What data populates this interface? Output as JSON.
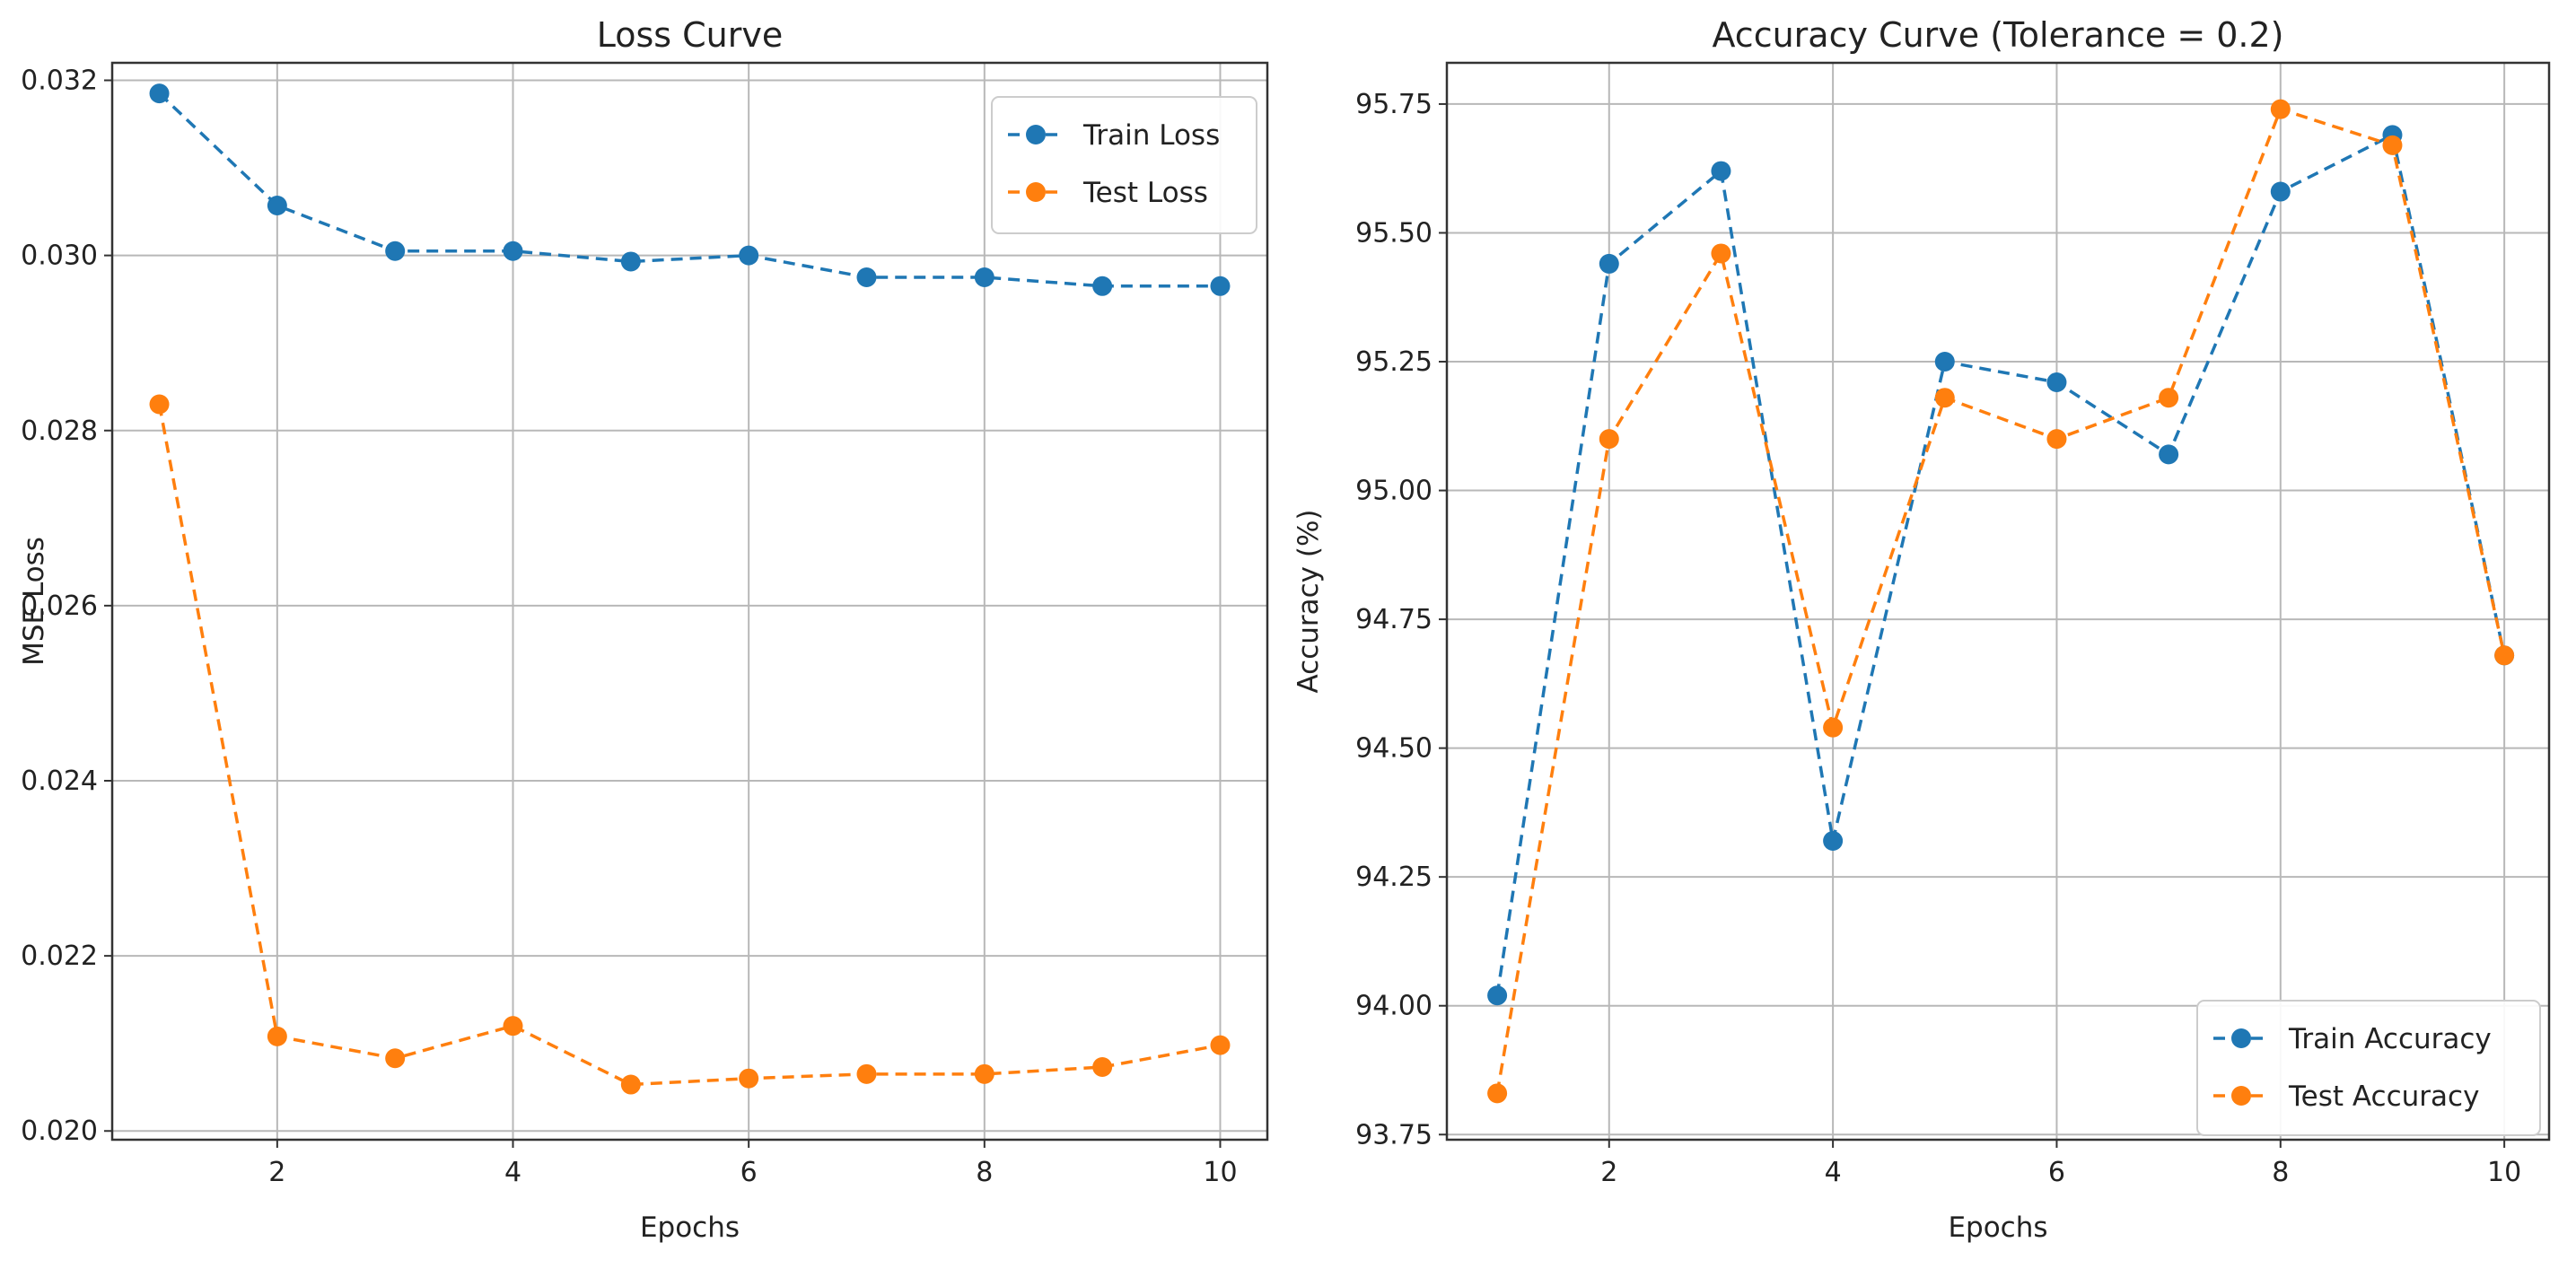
{
  "chart_data": [
    {
      "type": "line",
      "title": "Loss Curve",
      "xlabel": "Epochs",
      "ylabel": "MSE Loss",
      "xlim": [
        0.6,
        10.4
      ],
      "ylim": [
        0.0199,
        0.0322
      ],
      "xticks": [
        2,
        4,
        6,
        8,
        10
      ],
      "xtick_labels": [
        "2",
        "4",
        "6",
        "8",
        "10"
      ],
      "yticks": [
        0.02,
        0.022,
        0.024,
        0.026,
        0.028,
        0.03,
        0.032
      ],
      "ytick_labels": [
        "0.020",
        "0.022",
        "0.024",
        "0.026",
        "0.028",
        "0.030",
        "0.032"
      ],
      "grid": true,
      "legend_position": "top-right",
      "x": [
        1,
        2,
        3,
        4,
        5,
        6,
        7,
        8,
        9,
        10
      ],
      "series": [
        {
          "name": "Train Loss",
          "color": "#1f77b4",
          "values": [
            0.03185,
            0.03057,
            0.03005,
            0.03005,
            0.02993,
            0.03,
            0.02975,
            0.02975,
            0.02965,
            0.02965
          ]
        },
        {
          "name": "Test Loss",
          "color": "#ff7f0e",
          "values": [
            0.0283,
            0.02108,
            0.02083,
            0.0212,
            0.02053,
            0.0206,
            0.02065,
            0.02065,
            0.02073,
            0.02098
          ]
        }
      ]
    },
    {
      "type": "line",
      "title": "Accuracy Curve (Tolerance = 0.2)",
      "xlabel": "Epochs",
      "ylabel": "Accuracy (%)",
      "xlim": [
        0.55,
        10.4
      ],
      "ylim": [
        93.74,
        95.83
      ],
      "xticks": [
        2,
        4,
        6,
        8,
        10
      ],
      "xtick_labels": [
        "2",
        "4",
        "6",
        "8",
        "10"
      ],
      "yticks": [
        93.75,
        94.0,
        94.25,
        94.5,
        94.75,
        95.0,
        95.25,
        95.5,
        95.75
      ],
      "ytick_labels": [
        "93.75",
        "94.00",
        "94.25",
        "94.50",
        "94.75",
        "95.00",
        "95.25",
        "95.50",
        "95.75"
      ],
      "grid": true,
      "legend_position": "bottom-right",
      "x": [
        1,
        2,
        3,
        4,
        5,
        6,
        7,
        8,
        9,
        10
      ],
      "series": [
        {
          "name": "Train Accuracy",
          "color": "#1f77b4",
          "values": [
            94.02,
            95.44,
            95.62,
            94.32,
            95.25,
            95.21,
            95.07,
            95.58,
            95.69,
            94.68
          ]
        },
        {
          "name": "Test Accuracy",
          "color": "#ff7f0e",
          "values": [
            93.83,
            95.1,
            95.46,
            94.54,
            95.18,
            95.1,
            95.18,
            95.74,
            95.67,
            94.68
          ]
        }
      ]
    }
  ]
}
